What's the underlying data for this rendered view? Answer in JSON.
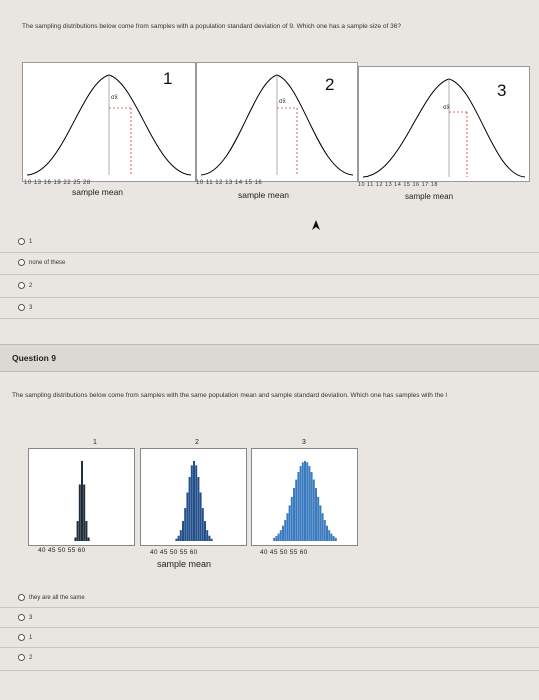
{
  "q8": {
    "prompt": "The sampling distributions below come from samples with a population standard deviation of 9. Which one has a sample size of 36?",
    "panels": [
      {
        "number": "1",
        "ticks": "10    13    16    19    22    25    28",
        "xlabel": "sample mean"
      },
      {
        "number": "2",
        "ticks": "10    11    12    13    14    15    16",
        "xlabel": "sample mean"
      },
      {
        "number": "3",
        "ticks": "10  11  12  13  14  15  16  17  18",
        "xlabel": "sample mean"
      }
    ],
    "sigma_label": "σx̄",
    "options": [
      "1",
      "none of these",
      "2",
      "3"
    ]
  },
  "q9": {
    "heading": "Question 9",
    "prompt": "The sampling distributions below come from samples with the same population mean and sample standard deviation. Which one has samples with the l",
    "panels": [
      {
        "number": "1",
        "ticks": "40  45  50  55  60"
      },
      {
        "number": "2",
        "ticks": "40  45  50  55  60"
      },
      {
        "number": "3",
        "ticks": "40  45  50  55  60"
      }
    ],
    "xlabel": "sample mean",
    "options": [
      "they are all the same",
      "3",
      "1",
      "2"
    ]
  },
  "colors": {
    "hist1": "#1f2d3a",
    "hist2": "#23508a",
    "hist3": "#3a7bbf"
  }
}
